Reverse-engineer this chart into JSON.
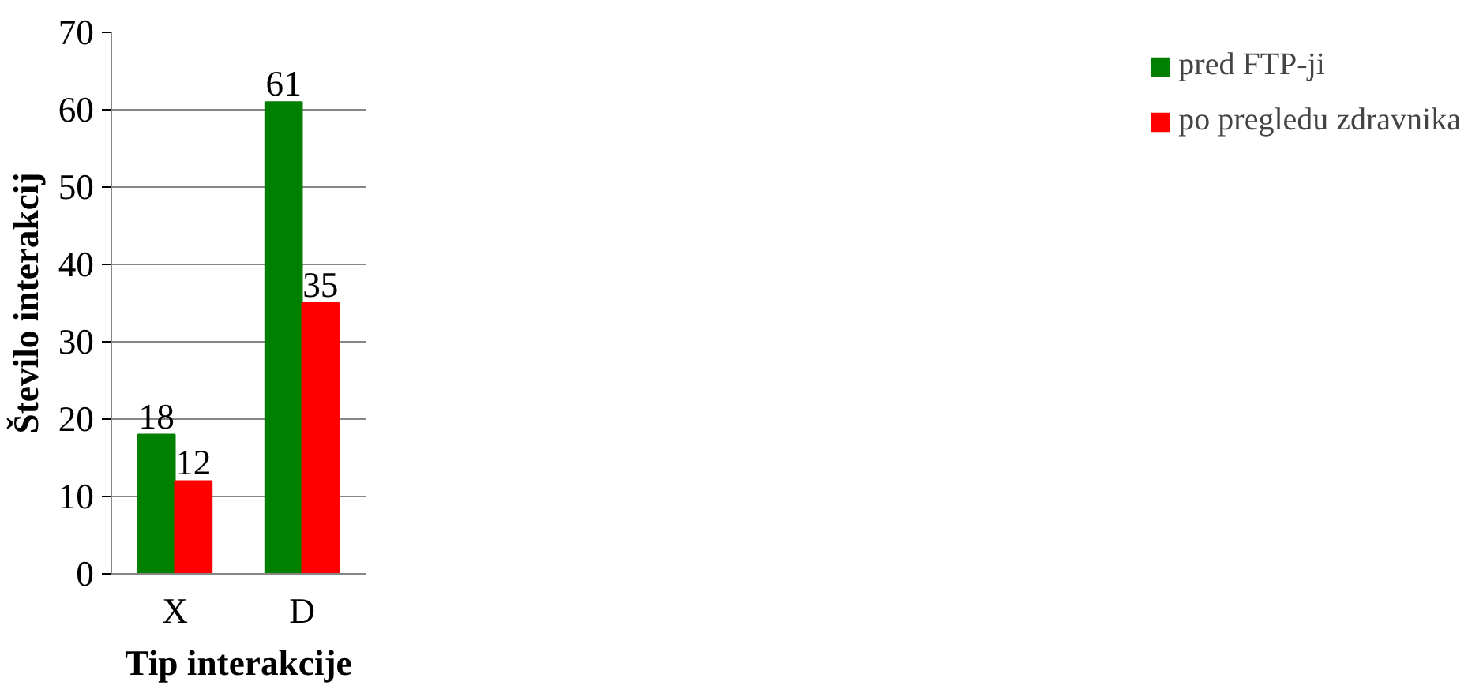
{
  "chart_data": {
    "type": "bar",
    "categories": [
      "X",
      "D"
    ],
    "xlabel": "Tip interakcije",
    "ylabel": "Število interakcij",
    "series": [
      {
        "name": "pred FTP-ji",
        "color": "#008000",
        "values": [
          18,
          61
        ]
      },
      {
        "name": "po pregledu zdravnika",
        "color": "#ff0000",
        "values": [
          12,
          35
        ]
      }
    ],
    "ylim": [
      0,
      70
    ],
    "yticks": [
      0,
      10,
      20,
      30,
      40,
      50,
      60,
      70
    ],
    "grid": "y",
    "legend": "right",
    "data_labels": true
  }
}
